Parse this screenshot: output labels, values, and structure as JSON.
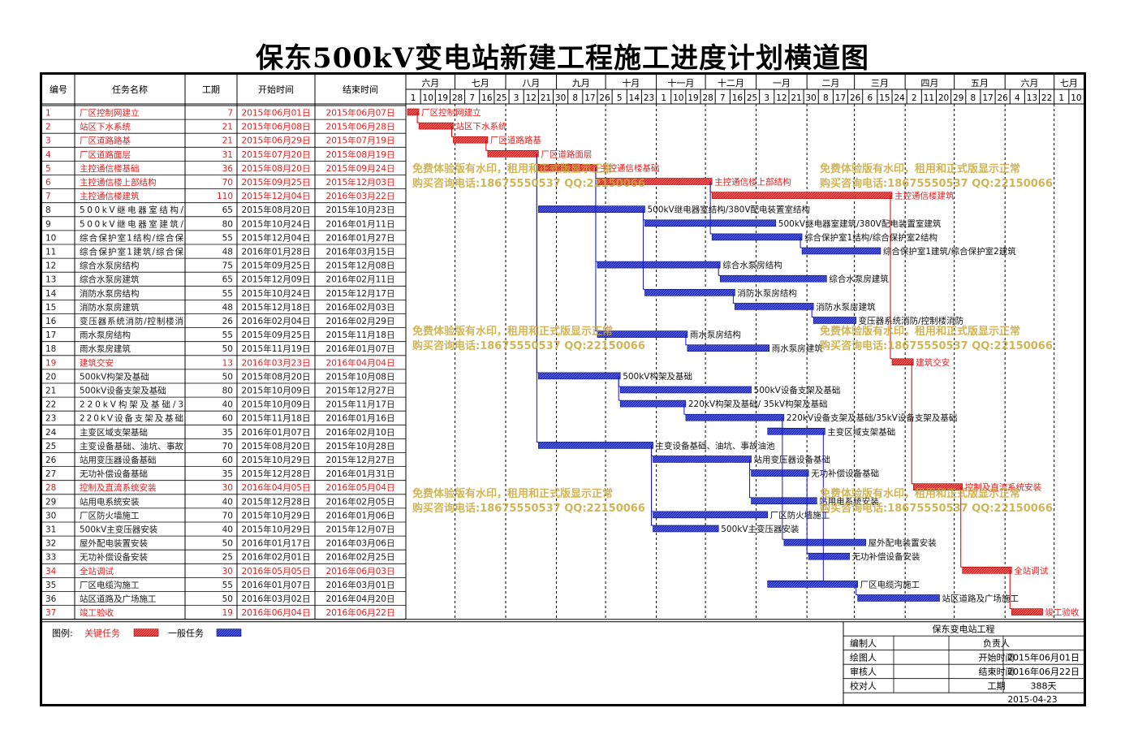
{
  "title": "保东500kV变电站新建工程施工进度计划横道图",
  "headers": {
    "no": "编号",
    "name": "任务名称",
    "dur": "工期",
    "start": "开始时间",
    "end": "结束时间"
  },
  "colors": {
    "critical": "#e03030",
    "normal": "#2b35c8",
    "critical_text": "#e02020",
    "normal_text": "#1a1a1a",
    "link": "#1515d0",
    "watermark": "#c9a83a"
  },
  "timeline": {
    "months": [
      "六月",
      "七月",
      "八月",
      "九月",
      "十月",
      "十一月",
      "十二月",
      "一月",
      "二月",
      "三月",
      "四月",
      "五月",
      "六月",
      "七月"
    ],
    "days": [
      "1",
      "10",
      "19",
      "28",
      "7",
      "16",
      "25",
      "3",
      "12",
      "21",
      "30",
      "8",
      "17",
      "26",
      "5",
      "14",
      "23",
      "1",
      "10",
      "19",
      "28",
      "7",
      "16",
      "25",
      "3",
      "12",
      "21",
      "30",
      "8",
      "17",
      "26",
      "6",
      "15",
      "24",
      "2",
      "11",
      "20",
      "29",
      "8",
      "17",
      "26",
      "4",
      "13",
      "22",
      "1",
      "10"
    ]
  },
  "chart_data": {
    "type": "gantt",
    "title": "保东500kV变电站新建工程施工进度计划横道图",
    "tasks": [
      {
        "no": "1",
        "name": "厂区控制网建立",
        "dur": "7",
        "start": "2015年06月01日",
        "end": "2015年06月07日",
        "critical": true,
        "label": "厂区控制网建立"
      },
      {
        "no": "2",
        "name": "站区下水系统",
        "dur": "21",
        "start": "2015年06月08日",
        "end": "2015年06月28日",
        "critical": true,
        "label": "站区下水系统"
      },
      {
        "no": "3",
        "name": "厂区道路路基",
        "dur": "21",
        "start": "2015年06月29日",
        "end": "2015年07月19日",
        "critical": true,
        "label": "厂区道路路基"
      },
      {
        "no": "4",
        "name": "厂区道路面层",
        "dur": "31",
        "start": "2015年07月20日",
        "end": "2015年08月19日",
        "critical": true,
        "label": "厂区道路面层"
      },
      {
        "no": "5",
        "name": "主控通信楼基础",
        "dur": "36",
        "start": "2015年08月20日",
        "end": "2015年09月24日",
        "critical": true,
        "label": "主控通信楼基础"
      },
      {
        "no": "6",
        "name": "主控通信楼上部结构",
        "dur": "70",
        "start": "2015年09月25日",
        "end": "2015年12月03日",
        "critical": true,
        "label": "主控通信楼上部结构"
      },
      {
        "no": "7",
        "name": "主控通信楼建筑",
        "dur": "110",
        "start": "2015年12月04日",
        "end": "2016年03月22日",
        "critical": true,
        "label": "主控通信楼建筑"
      },
      {
        "no": "8",
        "name": "500kV继电器室结构/380V配电装置室结构",
        "dur": "65",
        "start": "2015年08月20日",
        "end": "2015年10月23日",
        "critical": false,
        "label": "500kV继电器室结构/380V配电装置室结构"
      },
      {
        "no": "9",
        "name": "500kV继电器室建筑/380V配电装置室建筑",
        "dur": "80",
        "start": "2015年10月24日",
        "end": "2016年01月11日",
        "critical": false,
        "label": "500kV继电器室建筑/380V配电装置室建筑"
      },
      {
        "no": "10",
        "name": "综合保护室1结构/综合保护室2结构",
        "dur": "55",
        "start": "2015年12月04日",
        "end": "2016年01月27日",
        "critical": false,
        "label": "综合保护室1结构/综合保护室2结构"
      },
      {
        "no": "11",
        "name": "综合保护室1建筑/综合保护室2建筑",
        "dur": "48",
        "start": "2016年01月28日",
        "end": "2016年03月15日",
        "critical": false,
        "label": "综合保护室1建筑/综合保护室2建筑"
      },
      {
        "no": "12",
        "name": "综合水泵房结构",
        "dur": "75",
        "start": "2015年09月25日",
        "end": "2015年12月08日",
        "critical": false,
        "label": "综合水泵房结构"
      },
      {
        "no": "13",
        "name": "综合水泵房建筑",
        "dur": "65",
        "start": "2015年12月09日",
        "end": "2016年02月11日",
        "critical": false,
        "label": "综合水泵房建筑"
      },
      {
        "no": "14",
        "name": "消防水泵房结构",
        "dur": "55",
        "start": "2015年10月24日",
        "end": "2015年12月17日",
        "critical": false,
        "label": "消防水泵房结构"
      },
      {
        "no": "15",
        "name": "消防水泵房建筑",
        "dur": "48",
        "start": "2015年12月18日",
        "end": "2016年02月03日",
        "critical": false,
        "label": "消防水泵房建筑"
      },
      {
        "no": "16",
        "name": "变压器系统消防/控制楼消防",
        "dur": "26",
        "start": "2016年02月04日",
        "end": "2016年02月29日",
        "critical": false,
        "label": "变压器系统消防/控制楼消防"
      },
      {
        "no": "17",
        "name": "雨水泵房结构",
        "dur": "55",
        "start": "2015年09月25日",
        "end": "2015年11月18日",
        "critical": false,
        "label": "雨水泵房结构"
      },
      {
        "no": "18",
        "name": "雨水泵房建筑",
        "dur": "50",
        "start": "2015年11月19日",
        "end": "2016年01月07日",
        "critical": false,
        "label": "雨水泵房建筑"
      },
      {
        "no": "19",
        "name": "建筑交安",
        "dur": "13",
        "start": "2016年03月23日",
        "end": "2016年04月04日",
        "critical": true,
        "label": "建筑交安"
      },
      {
        "no": "20",
        "name": "500kV构架及基础",
        "dur": "50",
        "start": "2015年08月20日",
        "end": "2015年10月08日",
        "critical": false,
        "label": "500kV构架及基础"
      },
      {
        "no": "21",
        "name": "500kV设备支架及基础",
        "dur": "80",
        "start": "2015年10月09日",
        "end": "2015年12月27日",
        "critical": false,
        "label": "500kV设备支架及基础"
      },
      {
        "no": "22",
        "name": "220kV构架及基础/35kV构架及基础",
        "dur": "40",
        "start": "2015年10月09日",
        "end": "2015年11月17日",
        "critical": false,
        "label": "220kV构架及基础/ 35kV构架及基础"
      },
      {
        "no": "23",
        "name": "220kV设备支架及基础/35kV设备支架及基础",
        "dur": "60",
        "start": "2015年11月18日",
        "end": "2016年01月16日",
        "critical": false,
        "label": "220kV设备支架及基础/35kV设备支架及基础"
      },
      {
        "no": "24",
        "name": "主变区域支架基础",
        "dur": "35",
        "start": "2016年01月07日",
        "end": "2016年02月10日",
        "critical": false,
        "label": "主变区域支架基础"
      },
      {
        "no": "25",
        "name": "主变设备基础、油坑、事故油池",
        "dur": "70",
        "start": "2015年08月20日",
        "end": "2015年10月28日",
        "critical": false,
        "label": "主变设备基础、油坑、事故油池"
      },
      {
        "no": "26",
        "name": "站用变压器设备基础",
        "dur": "60",
        "start": "2015年10月29日",
        "end": "2015年12月27日",
        "critical": false,
        "label": "站用变压器设备基础"
      },
      {
        "no": "27",
        "name": "无功补偿设备基础",
        "dur": "35",
        "start": "2015年12月28日",
        "end": "2016年01月31日",
        "critical": false,
        "label": "无功补偿设备基础"
      },
      {
        "no": "28",
        "name": "控制及直流系统安装",
        "dur": "30",
        "start": "2016年04月05日",
        "end": "2016年05月04日",
        "critical": true,
        "label": "控制及直流系统安装"
      },
      {
        "no": "29",
        "name": "站用电系统安装",
        "dur": "40",
        "start": "2015年12月28日",
        "end": "2016年02月05日",
        "critical": false,
        "label": "站用电系统安装"
      },
      {
        "no": "30",
        "name": "厂区防火墙施工",
        "dur": "70",
        "start": "2015年10月29日",
        "end": "2016年01月06日",
        "critical": false,
        "label": "厂区防火墙施工"
      },
      {
        "no": "31",
        "name": "500kV主变压器安装",
        "dur": "40",
        "start": "2015年10月29日",
        "end": "2015年12月07日",
        "critical": false,
        "label": "500kV主变压器安装"
      },
      {
        "no": "32",
        "name": "屋外配电装置安装",
        "dur": "50",
        "start": "2016年01月17日",
        "end": "2016年03月06日",
        "critical": false,
        "label": "屋外配电装置安装"
      },
      {
        "no": "33",
        "name": "无功补偿设备安装",
        "dur": "25",
        "start": "2016年02月01日",
        "end": "2016年02月25日",
        "critical": false,
        "label": "无功补偿设备安装"
      },
      {
        "no": "34",
        "name": "全站调试",
        "dur": "30",
        "start": "2016年05月05日",
        "end": "2016年06月03日",
        "critical": true,
        "label": "全站调试"
      },
      {
        "no": "35",
        "name": "厂区电缆沟施工",
        "dur": "55",
        "start": "2016年01月07日",
        "end": "2016年03月01日",
        "critical": false,
        "label": "厂区电缆沟施工"
      },
      {
        "no": "36",
        "name": "站区道路及广场施工",
        "dur": "50",
        "start": "2016年03月02日",
        "end": "2016年04月20日",
        "critical": false,
        "label": "站区道路及广场施工"
      },
      {
        "no": "37",
        "name": "竣工验收",
        "dur": "19",
        "start": "2016年06月04日",
        "end": "2016年06月22日",
        "critical": true,
        "label": "竣工验收"
      }
    ]
  },
  "legend": {
    "label": "图例:",
    "critical": "关键任务",
    "normal": "一般任务"
  },
  "watermark": {
    "line1": "免费体验版有水印，租用和正式版显示正常",
    "line2": "购买咨询电话:18675550537 QQ:22150066"
  },
  "titleblock": {
    "project": "保东变电站工程",
    "rows": [
      [
        "编制人",
        "",
        "负责人",
        ""
      ],
      [
        "绘图人",
        "",
        "开始时间",
        "2015年06月01日"
      ],
      [
        "审核人",
        "",
        "结束时间",
        "2016年06月22日"
      ],
      [
        "校对人",
        "",
        "工期",
        "388天"
      ]
    ],
    "date": "2015-04-23"
  }
}
